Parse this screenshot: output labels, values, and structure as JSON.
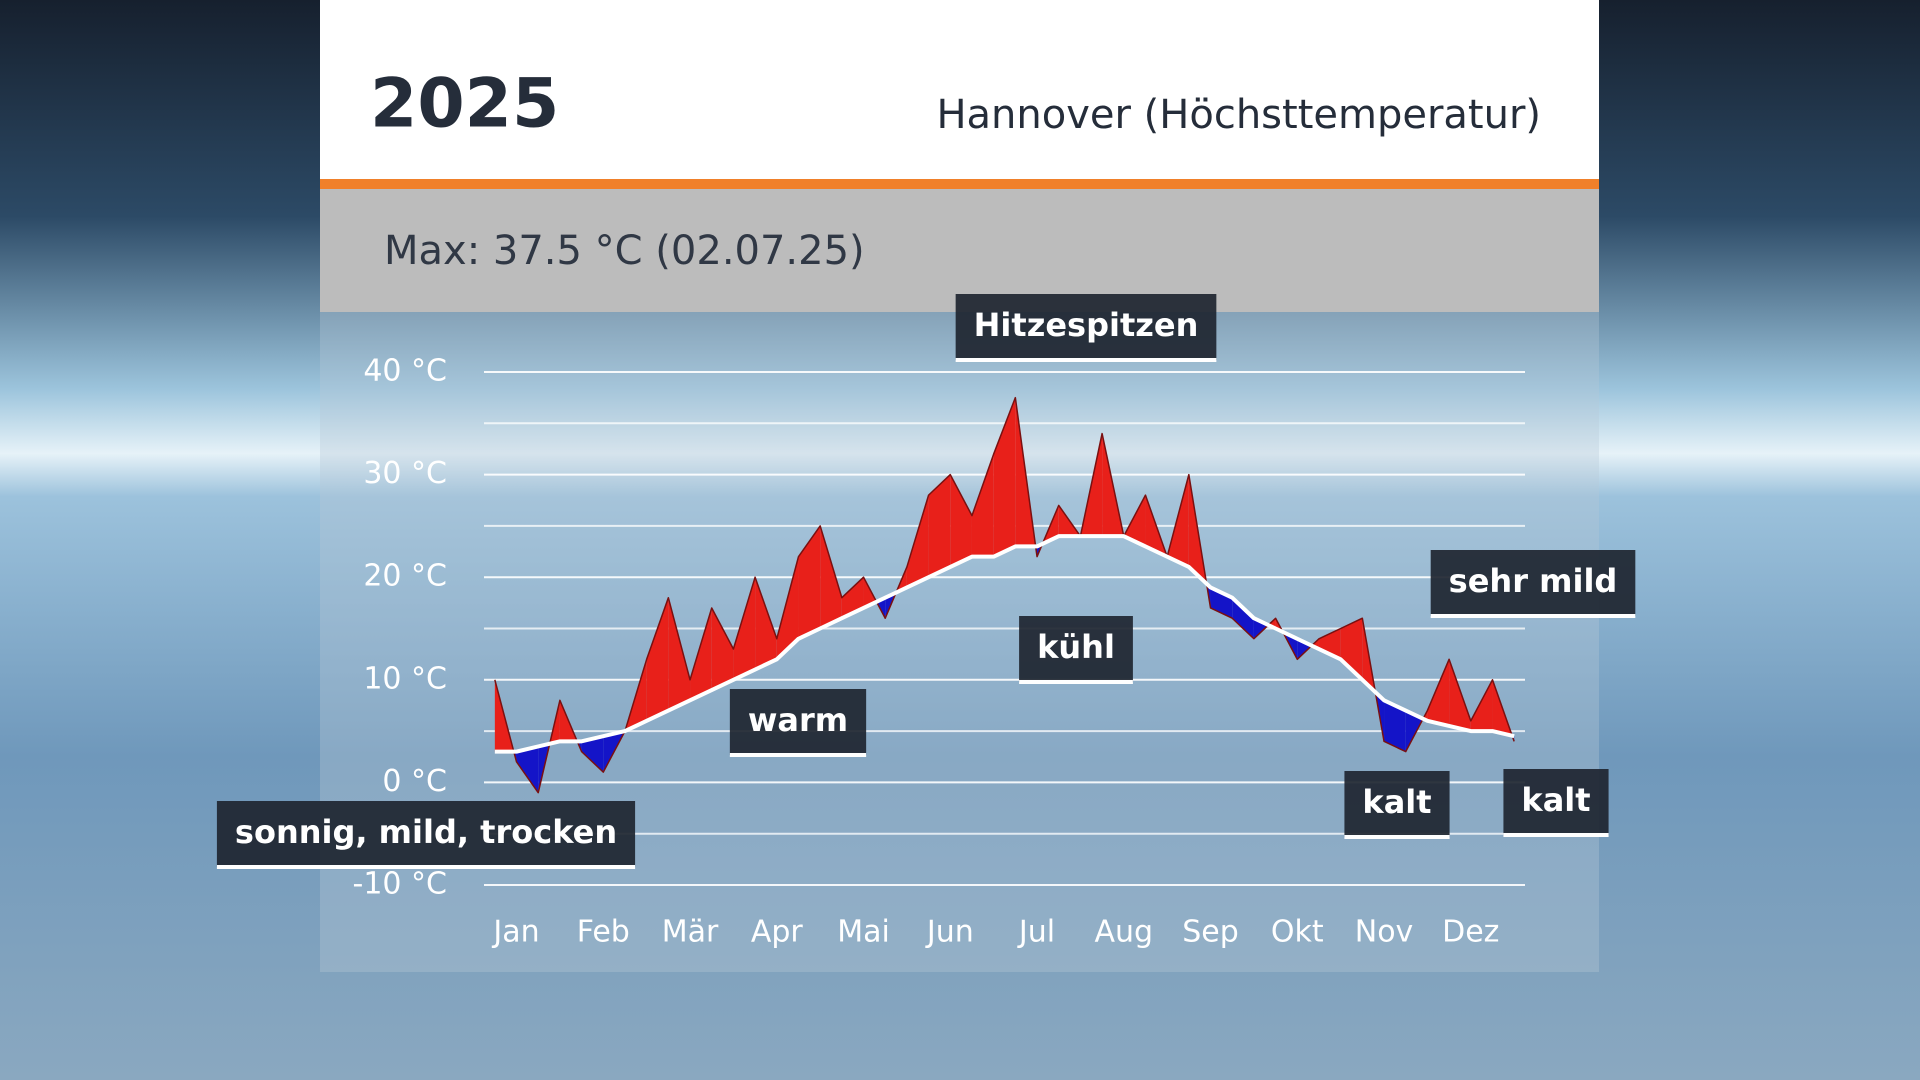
{
  "chart_data": {
    "type": "anomaly-area",
    "title": "2025",
    "subtitle": "Hannover (Höchsttemperatur)",
    "max_label": "Max: 37.5 °C (02.07.25)",
    "categories": [
      "Jan",
      null,
      null,
      null,
      "Feb",
      null,
      null,
      null,
      "Mär",
      null,
      null,
      null,
      "Apr",
      null,
      null,
      null,
      "Mai",
      null,
      null,
      null,
      "Jun",
      null,
      null,
      null,
      "Jul",
      null,
      null,
      null,
      "Aug",
      null,
      null,
      null,
      "Sep",
      null,
      null,
      null,
      "Okt",
      null,
      null,
      null,
      "Nov",
      null,
      null,
      null,
      "Dez",
      null,
      null,
      null
    ],
    "series": [
      {
        "color": "#7a1010",
        "values": [
          10,
          2,
          -1,
          8,
          3,
          1,
          5,
          12,
          18,
          10,
          17,
          13,
          20,
          14,
          22,
          25,
          18,
          20,
          16,
          21,
          28,
          30,
          26,
          32,
          37.5,
          22,
          27,
          24,
          34,
          24,
          28,
          22,
          30,
          17,
          16,
          14,
          16,
          12,
          14,
          15,
          16,
          4,
          3,
          7,
          12,
          6,
          10,
          4
        ]
      },
      {
        "color": "#ffffff",
        "values": [
          3,
          3,
          3.5,
          4,
          4,
          4.5,
          5,
          6,
          7,
          8,
          9,
          10,
          11,
          12,
          14,
          15,
          16,
          17,
          18,
          19,
          20,
          21,
          22,
          22,
          23,
          23,
          24,
          24,
          24,
          24,
          23,
          22,
          21,
          19,
          18,
          16,
          15,
          14,
          13,
          12,
          10,
          8,
          7,
          6,
          5.5,
          5,
          5,
          4.5
        ]
      }
    ],
    "above_color": "#e8201a",
    "below_color": "#1414c8",
    "ylim": [
      -10,
      40
    ],
    "yticks": [
      {
        "value": -10,
        "label": "-10 °C"
      },
      {
        "value": 0,
        "label": "0 °C"
      },
      {
        "value": 10,
        "label": "10 °C"
      },
      {
        "value": 20,
        "label": "20 °C"
      },
      {
        "value": 30,
        "label": "30 °C"
      },
      {
        "value": 40,
        "label": "40 °C"
      }
    ],
    "minor_yticks": [
      -5,
      5,
      15,
      25,
      35
    ],
    "grid": true,
    "annotations": [
      "Hitzespitzen",
      "sehr mild",
      "kühl",
      "warm",
      "kalt",
      "kalt",
      "sonnig, mild, trocken"
    ]
  }
}
